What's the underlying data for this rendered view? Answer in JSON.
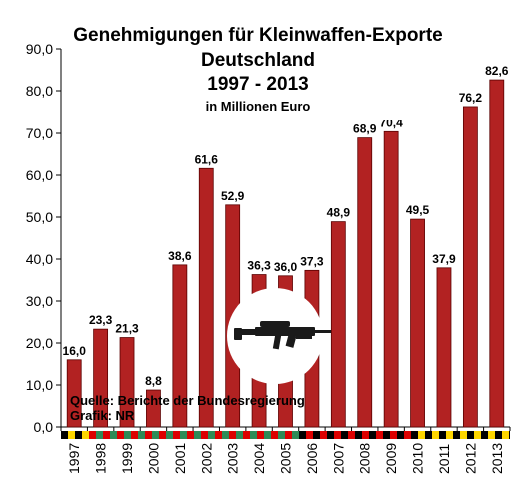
{
  "chart_data": {
    "type": "bar",
    "title_lines": [
      "Genehmigungen für Kleinwaffen-Exporte",
      "Deutschland",
      "1997 - 2013"
    ],
    "subtitle": "in Millionen Euro",
    "categories": [
      "1997",
      "1998",
      "1999",
      "2000",
      "2001",
      "2002",
      "2003",
      "2004",
      "2005",
      "2006",
      "2007",
      "2008",
      "2009",
      "2010",
      "2011",
      "2012",
      "2013"
    ],
    "values": [
      16.0,
      23.3,
      21.3,
      8.8,
      38.6,
      61.6,
      52.9,
      36.3,
      36.0,
      37.3,
      48.9,
      68.9,
      70.4,
      49.5,
      37.9,
      76.2,
      82.6
    ],
    "value_labels": [
      "16,0",
      "23,3",
      "21,3",
      "8,8",
      "38,6",
      "61,6",
      "52,9",
      "36,3",
      "36,0",
      "37,3",
      "48,9",
      "68,9",
      "70,4",
      "49,5",
      "37,9",
      "76,2",
      "82,6"
    ],
    "ylim": [
      0,
      90
    ],
    "yticks": [
      "0,0",
      "10,0",
      "20,0",
      "30,0",
      "40,0",
      "50,0",
      "60,0",
      "70,0",
      "80,0",
      "90,0"
    ],
    "xlabel": "",
    "ylabel": "",
    "grid": false,
    "bar_color": "#b22222",
    "source_lines": [
      "Quelle: Berichte der Bundesregierung",
      "Grafik: NR"
    ]
  },
  "colors": {
    "bar": "#b22222",
    "bar_edge": "#5a0000",
    "band_dark": "#000000",
    "band_yellow": "#ffd700",
    "band_red": "#dd0000",
    "band_green": "#2e8b57"
  },
  "icons": {
    "emblem": "rifle-icon"
  }
}
